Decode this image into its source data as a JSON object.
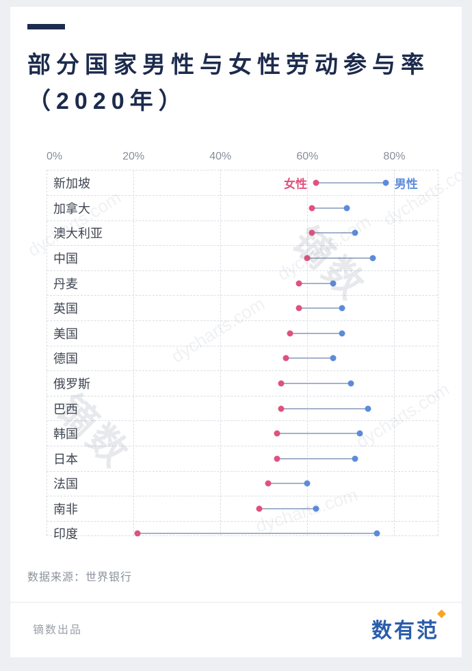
{
  "header": {
    "title_line1": "部分国家男性与女性劳动参与率",
    "title_line2": "（2020年）",
    "accent_color": "#1d2b4e"
  },
  "chart_data": {
    "type": "dumbbell",
    "title": "部分国家男性与女性劳动参与率（2020年）",
    "x_ticks": [
      "0%",
      "20%",
      "40%",
      "60%",
      "80%"
    ],
    "x_tick_values": [
      0,
      20,
      40,
      60,
      80
    ],
    "xlim": [
      0,
      90
    ],
    "grid": "dashed",
    "legend_position": "inline-first-row",
    "legend": [
      {
        "label": "女性",
        "color": "#E0517E"
      },
      {
        "label": "男性",
        "color": "#5C8BD9"
      }
    ],
    "colors": {
      "female": "#E0517E",
      "male": "#5C8BD9",
      "connector": "#A3B2CB"
    },
    "rows": [
      {
        "country": "新加坡",
        "female": 62,
        "male": 78
      },
      {
        "country": "加拿大",
        "female": 61,
        "male": 69
      },
      {
        "country": "澳大利亚",
        "female": 61,
        "male": 71
      },
      {
        "country": "中国",
        "female": 60,
        "male": 75
      },
      {
        "country": "丹麦",
        "female": 58,
        "male": 66
      },
      {
        "country": "英国",
        "female": 58,
        "male": 68
      },
      {
        "country": "美国",
        "female": 56,
        "male": 68
      },
      {
        "country": "德国",
        "female": 55,
        "male": 66
      },
      {
        "country": "俄罗斯",
        "female": 54,
        "male": 70
      },
      {
        "country": "巴西",
        "female": 54,
        "male": 74
      },
      {
        "country": "韩国",
        "female": 53,
        "male": 72
      },
      {
        "country": "日本",
        "female": 53,
        "male": 71
      },
      {
        "country": "法国",
        "female": 51,
        "male": 60
      },
      {
        "country": "南非",
        "female": 49,
        "male": 62
      },
      {
        "country": "印度",
        "female": 21,
        "male": 76
      }
    ]
  },
  "watermark": {
    "text": "dycharts.com",
    "brand": "镝数"
  },
  "source": {
    "text": "数据来源：世界银行"
  },
  "footer": {
    "left": "镝数出品",
    "logo": "数有范"
  }
}
